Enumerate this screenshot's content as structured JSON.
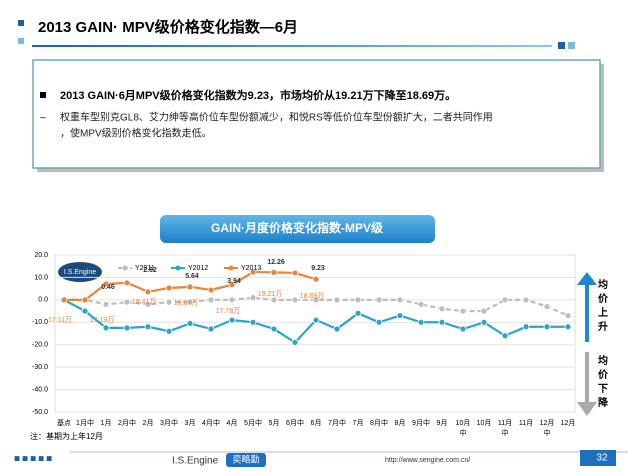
{
  "header": {
    "title": "2013 GAIN· MPV级价格变化指数—6月"
  },
  "summary": {
    "bullet": "2013 GAIN·6月MPV级价格变化指数为9.23，市场均价从19.21万下降至18.69万。",
    "detail_1": "权重车型别克GL8、艾力绅等高价位车型份额减少，和悦RS等低价位车型份额扩大，二者共同作用",
    "detail_2": "，使MPV级别价格变化指数走低。"
  },
  "chart_data": {
    "type": "line",
    "title": "GAIN·月度价格变化指数-MPV级",
    "categories": [
      "基点",
      "1月中",
      "1月",
      "2月中",
      "2月",
      "3月中",
      "3月",
      "4月中",
      "4月",
      "5月中",
      "5月",
      "6月中",
      "6月",
      "7月中",
      "7月",
      "8月中",
      "8月",
      "9月中",
      "9月",
      "10月中",
      "10月",
      "11月中",
      "11月",
      "12月中",
      "12月"
    ],
    "series": [
      {
        "name": "Y2011",
        "color": "#bdbdbd",
        "dashed": true,
        "values": [
          0,
          0,
          -2,
          -1,
          -2,
          -1,
          -1,
          0,
          0,
          1,
          0,
          0,
          0,
          0,
          0,
          0,
          0,
          -2,
          -4,
          -5,
          -5,
          0,
          0,
          -3,
          -7
        ]
      },
      {
        "name": "Y2012",
        "color": "#2ba5c3",
        "values": [
          0,
          -5,
          -12.5,
          -12.5,
          -12,
          -14,
          -10.5,
          -13,
          -9,
          -10,
          -13,
          -19,
          -9,
          -13,
          -6,
          -10,
          -7,
          -10,
          -10,
          -13,
          -10,
          -16,
          -12,
          -12,
          -12
        ]
      },
      {
        "name": "Y2013",
        "color": "#e8843c",
        "values": [
          0,
          0,
          7.1,
          7.6,
          3.6,
          5.3,
          5.8,
          4.4,
          6.7,
          12.4,
          12.26,
          12,
          9.23,
          null,
          null,
          null,
          null,
          null,
          null,
          null,
          null,
          null,
          null,
          null,
          null
        ]
      }
    ],
    "ylim": [
      -50,
      20
    ],
    "yticks": [
      {
        "value": 20,
        "label": "20.0"
      },
      {
        "value": 10,
        "label": "10.0"
      },
      {
        "value": 0,
        "label": "0.0"
      },
      {
        "value": -10,
        "label": "-10.0"
      },
      {
        "value": -20,
        "label": "-20.0"
      },
      {
        "value": -30,
        "label": "-30.0"
      },
      {
        "value": -40,
        "label": "-40.0"
      },
      {
        "value": -50,
        "label": "-50.0"
      }
    ],
    "grid": true,
    "annotations": [
      "0.46",
      "2.62",
      "5.64",
      "3.94",
      "12.26",
      "9.23"
    ],
    "price_labels": [
      "17.11万",
      "17.19万",
      "18.41万",
      "18.67万",
      "17.78万",
      "19.21万",
      "18.69万"
    ],
    "logo": "I.S.Engine",
    "up_label": "均价上升",
    "down_label": "均价下降",
    "note": "注：基期为上年12月"
  },
  "footer": {
    "brand": "I.S.Engine",
    "brand_cn": "奕略勤",
    "url": "http://www.sengine.com.cn/",
    "page": "32"
  }
}
